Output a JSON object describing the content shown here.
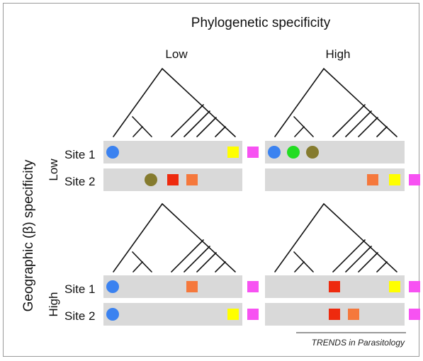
{
  "title": "Phylogenetic specificity",
  "column_labels": [
    "Low",
    "High"
  ],
  "row_axis_label": "Geographic (β) specificity",
  "row_labels": [
    "Low",
    "High"
  ],
  "site_labels": [
    "Site 1",
    "Site 2"
  ],
  "credit": "TRENDS in Parasitology",
  "colors": {
    "blue": "#3b82f0",
    "green": "#22dd22",
    "olive": "#857b2e",
    "red": "#ee2a0e",
    "orange": "#f5783c",
    "yellow": "#ffff00",
    "magenta": "#f752f2",
    "band": "#d9d9d9",
    "tree": "#111111"
  },
  "panels": [
    {
      "id": "low-geo-low-phylo",
      "sites": [
        {
          "site": "Site 1",
          "markers": [
            {
              "slot": 1,
              "shape": "circle",
              "color": "blue"
            },
            {
              "slot": 7,
              "shape": "square",
              "color": "yellow"
            },
            {
              "slot": 8,
              "shape": "square",
              "color": "magenta"
            }
          ]
        },
        {
          "site": "Site 2",
          "markers": [
            {
              "slot": 3,
              "shape": "circle",
              "color": "olive"
            },
            {
              "slot": 4,
              "shape": "square",
              "color": "red"
            },
            {
              "slot": 5,
              "shape": "square",
              "color": "orange"
            }
          ]
        }
      ]
    },
    {
      "id": "low-geo-high-phylo",
      "sites": [
        {
          "site": "Site 1",
          "markers": [
            {
              "slot": 1,
              "shape": "circle",
              "color": "blue"
            },
            {
              "slot": 2,
              "shape": "circle",
              "color": "green"
            },
            {
              "slot": 3,
              "shape": "circle",
              "color": "olive"
            }
          ]
        },
        {
          "site": "Site 2",
          "markers": [
            {
              "slot": 6,
              "shape": "square",
              "color": "orange"
            },
            {
              "slot": 7,
              "shape": "square",
              "color": "yellow"
            },
            {
              "slot": 8,
              "shape": "square",
              "color": "magenta"
            }
          ]
        }
      ]
    },
    {
      "id": "high-geo-low-phylo",
      "sites": [
        {
          "site": "Site 1",
          "markers": [
            {
              "slot": 1,
              "shape": "circle",
              "color": "blue"
            },
            {
              "slot": 5,
              "shape": "square",
              "color": "orange"
            },
            {
              "slot": 8,
              "shape": "square",
              "color": "magenta"
            }
          ]
        },
        {
          "site": "Site 2",
          "markers": [
            {
              "slot": 1,
              "shape": "circle",
              "color": "blue"
            },
            {
              "slot": 7,
              "shape": "square",
              "color": "yellow"
            },
            {
              "slot": 8,
              "shape": "square",
              "color": "magenta"
            }
          ]
        }
      ]
    },
    {
      "id": "high-geo-high-phylo",
      "sites": [
        {
          "site": "Site 1",
          "markers": [
            {
              "slot": 4,
              "shape": "square",
              "color": "red"
            },
            {
              "slot": 7,
              "shape": "square",
              "color": "yellow"
            },
            {
              "slot": 8,
              "shape": "square",
              "color": "magenta"
            }
          ]
        },
        {
          "site": "Site 2",
          "markers": [
            {
              "slot": 4,
              "shape": "square",
              "color": "red"
            },
            {
              "slot": 5,
              "shape": "square",
              "color": "orange"
            },
            {
              "slot": 8,
              "shape": "square",
              "color": "magenta"
            }
          ]
        }
      ]
    }
  ]
}
